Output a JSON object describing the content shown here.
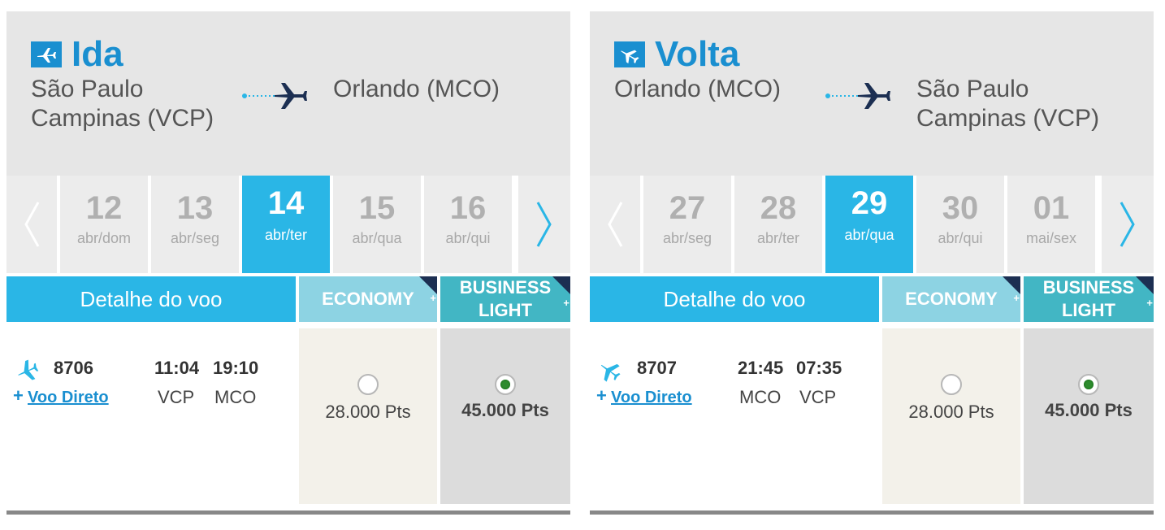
{
  "ida": {
    "title": "Ida",
    "origin_line1": "São Paulo",
    "origin_line2": "Campinas (VCP)",
    "destination": "Orlando (MCO)",
    "dates": [
      {
        "day": "12",
        "label": "abr/dom",
        "selected": false
      },
      {
        "day": "13",
        "label": "abr/seg",
        "selected": false
      },
      {
        "day": "14",
        "label": "abr/ter",
        "selected": true
      },
      {
        "day": "15",
        "label": "abr/qua",
        "selected": false
      },
      {
        "day": "16",
        "label": "abr/qui",
        "selected": false
      }
    ],
    "table": {
      "detail_header": "Detalhe do voo",
      "economy_header": "ECONOMY",
      "business_header_1": "BUSINESS",
      "business_header_2": "LIGHT",
      "corner_plus": "+"
    },
    "flight": {
      "number": "8706",
      "departure_time": "11:04",
      "arrival_time": "19:10",
      "from": "VCP",
      "to": "MCO",
      "plus": "+",
      "direct_label": "Voo Direto",
      "economy_price": "28.000 Pts",
      "business_price": "45.000 Pts",
      "selected_fare": "business"
    }
  },
  "volta": {
    "title": "Volta",
    "origin_line1": "Orlando (MCO)",
    "destination_line1": "São Paulo",
    "destination_line2": "Campinas (VCP)",
    "dates": [
      {
        "day": "27",
        "label": "abr/seg",
        "selected": false
      },
      {
        "day": "28",
        "label": "abr/ter",
        "selected": false
      },
      {
        "day": "29",
        "label": "abr/qua",
        "selected": true
      },
      {
        "day": "30",
        "label": "abr/qui",
        "selected": false
      },
      {
        "day": "01",
        "label": "mai/sex",
        "selected": false
      }
    ],
    "table": {
      "detail_header": "Detalhe do voo",
      "economy_header": "ECONOMY",
      "business_header_1": "BUSINESS",
      "business_header_2": "LIGHT",
      "corner_plus": "+"
    },
    "flight": {
      "number": "8707",
      "departure_time": "21:45",
      "arrival_time": "07:35",
      "from": "MCO",
      "to": "VCP",
      "plus": "+",
      "direct_label": "Voo Direto",
      "economy_price": "28.000 Pts",
      "business_price": "45.000 Pts",
      "selected_fare": "business"
    }
  },
  "colors": {
    "accent": "#1a8fd0",
    "selected_date": "#2ab6e6",
    "economy_header": "#8dd3e3",
    "business_header": "#42b6c4",
    "radio_selected": "#2e8b2e"
  },
  "icons": {
    "title_icon": "airplane-icon",
    "route_icon": "dotted-route-plane-icon",
    "prev": "chevron-left-icon",
    "next": "chevron-right-icon",
    "flight": "airplane-icon"
  }
}
